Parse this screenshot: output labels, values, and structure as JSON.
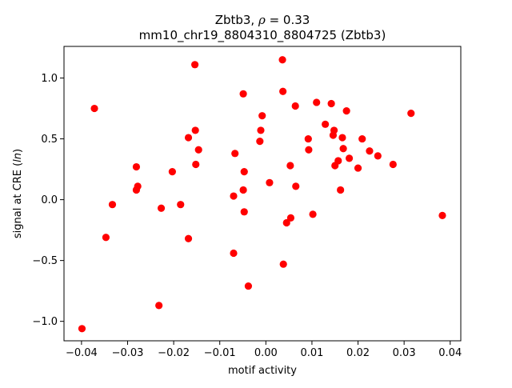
{
  "chart_data": {
    "type": "scatter",
    "title_line1_prefix": "Zbtb3, ",
    "title_line1_rho": "ρ",
    "title_line1_suffix": " = 0.33",
    "title_line2": "mm10_chr19_8804310_8804725 (Zbtb3)",
    "xlabel": "motif activity",
    "ylabel_prefix": "signal at CRE (",
    "ylabel_italic": "ln",
    "ylabel_suffix": ")",
    "xlim": [
      -0.0438,
      0.0423
    ],
    "ylim": [
      -1.16,
      1.26
    ],
    "xticks": [
      -0.04,
      -0.03,
      -0.02,
      -0.01,
      0.0,
      0.01,
      0.02,
      0.03,
      0.04
    ],
    "xtick_labels": [
      "−0.04",
      "−0.03",
      "−0.02",
      "−0.01",
      "0.00",
      "0.01",
      "0.02",
      "0.03",
      "0.04"
    ],
    "yticks": [
      -1.0,
      -0.5,
      0.0,
      0.5,
      1.0
    ],
    "ytick_labels": [
      "−1.0",
      "−0.5",
      "0.0",
      "0.5",
      "1.0"
    ],
    "grid": false,
    "legend": "none",
    "marker_color": "#ff0000",
    "points": [
      {
        "x": -0.0399,
        "y": -1.06
      },
      {
        "x": -0.0372,
        "y": 0.75
      },
      {
        "x": -0.0347,
        "y": -0.31
      },
      {
        "x": -0.0333,
        "y": -0.04
      },
      {
        "x": -0.0281,
        "y": 0.27
      },
      {
        "x": -0.0281,
        "y": 0.08
      },
      {
        "x": -0.0278,
        "y": 0.11
      },
      {
        "x": -0.0232,
        "y": -0.87
      },
      {
        "x": -0.0227,
        "y": -0.07
      },
      {
        "x": -0.0203,
        "y": 0.23
      },
      {
        "x": -0.0185,
        "y": -0.04
      },
      {
        "x": -0.0168,
        "y": 0.51
      },
      {
        "x": -0.0168,
        "y": -0.32
      },
      {
        "x": -0.0154,
        "y": 1.11
      },
      {
        "x": -0.0153,
        "y": 0.57
      },
      {
        "x": -0.0152,
        "y": 0.29
      },
      {
        "x": -0.0146,
        "y": 0.41
      },
      {
        "x": -0.007,
        "y": 0.03
      },
      {
        "x": -0.007,
        "y": -0.44
      },
      {
        "x": -0.0067,
        "y": 0.38
      },
      {
        "x": -0.0049,
        "y": 0.87
      },
      {
        "x": -0.0049,
        "y": 0.08
      },
      {
        "x": -0.0047,
        "y": 0.23
      },
      {
        "x": -0.0047,
        "y": -0.1
      },
      {
        "x": -0.0038,
        "y": -0.71
      },
      {
        "x": -0.0013,
        "y": 0.48
      },
      {
        "x": -0.0011,
        "y": 0.57
      },
      {
        "x": -0.0008,
        "y": 0.69
      },
      {
        "x": 0.0008,
        "y": 0.14
      },
      {
        "x": 0.0036,
        "y": 1.15
      },
      {
        "x": 0.0037,
        "y": 0.89
      },
      {
        "x": 0.0038,
        "y": -0.53
      },
      {
        "x": 0.0045,
        "y": -0.19
      },
      {
        "x": 0.0053,
        "y": 0.28
      },
      {
        "x": 0.0054,
        "y": -0.15
      },
      {
        "x": 0.0064,
        "y": 0.77
      },
      {
        "x": 0.0065,
        "y": 0.11
      },
      {
        "x": 0.0092,
        "y": 0.5
      },
      {
        "x": 0.0093,
        "y": 0.41
      },
      {
        "x": 0.0102,
        "y": -0.12
      },
      {
        "x": 0.011,
        "y": 0.8
      },
      {
        "x": 0.0129,
        "y": 0.62
      },
      {
        "x": 0.0142,
        "y": 0.79
      },
      {
        "x": 0.0146,
        "y": 0.53
      },
      {
        "x": 0.0148,
        "y": 0.57
      },
      {
        "x": 0.015,
        "y": 0.28
      },
      {
        "x": 0.0157,
        "y": 0.32
      },
      {
        "x": 0.0162,
        "y": 0.08
      },
      {
        "x": 0.0166,
        "y": 0.51
      },
      {
        "x": 0.0168,
        "y": 0.42
      },
      {
        "x": 0.0175,
        "y": 0.73
      },
      {
        "x": 0.0181,
        "y": 0.34
      },
      {
        "x": 0.02,
        "y": 0.26
      },
      {
        "x": 0.0209,
        "y": 0.5
      },
      {
        "x": 0.0225,
        "y": 0.4
      },
      {
        "x": 0.0243,
        "y": 0.36
      },
      {
        "x": 0.0276,
        "y": 0.29
      },
      {
        "x": 0.0315,
        "y": 0.71
      },
      {
        "x": 0.0383,
        "y": -0.13
      }
    ]
  }
}
